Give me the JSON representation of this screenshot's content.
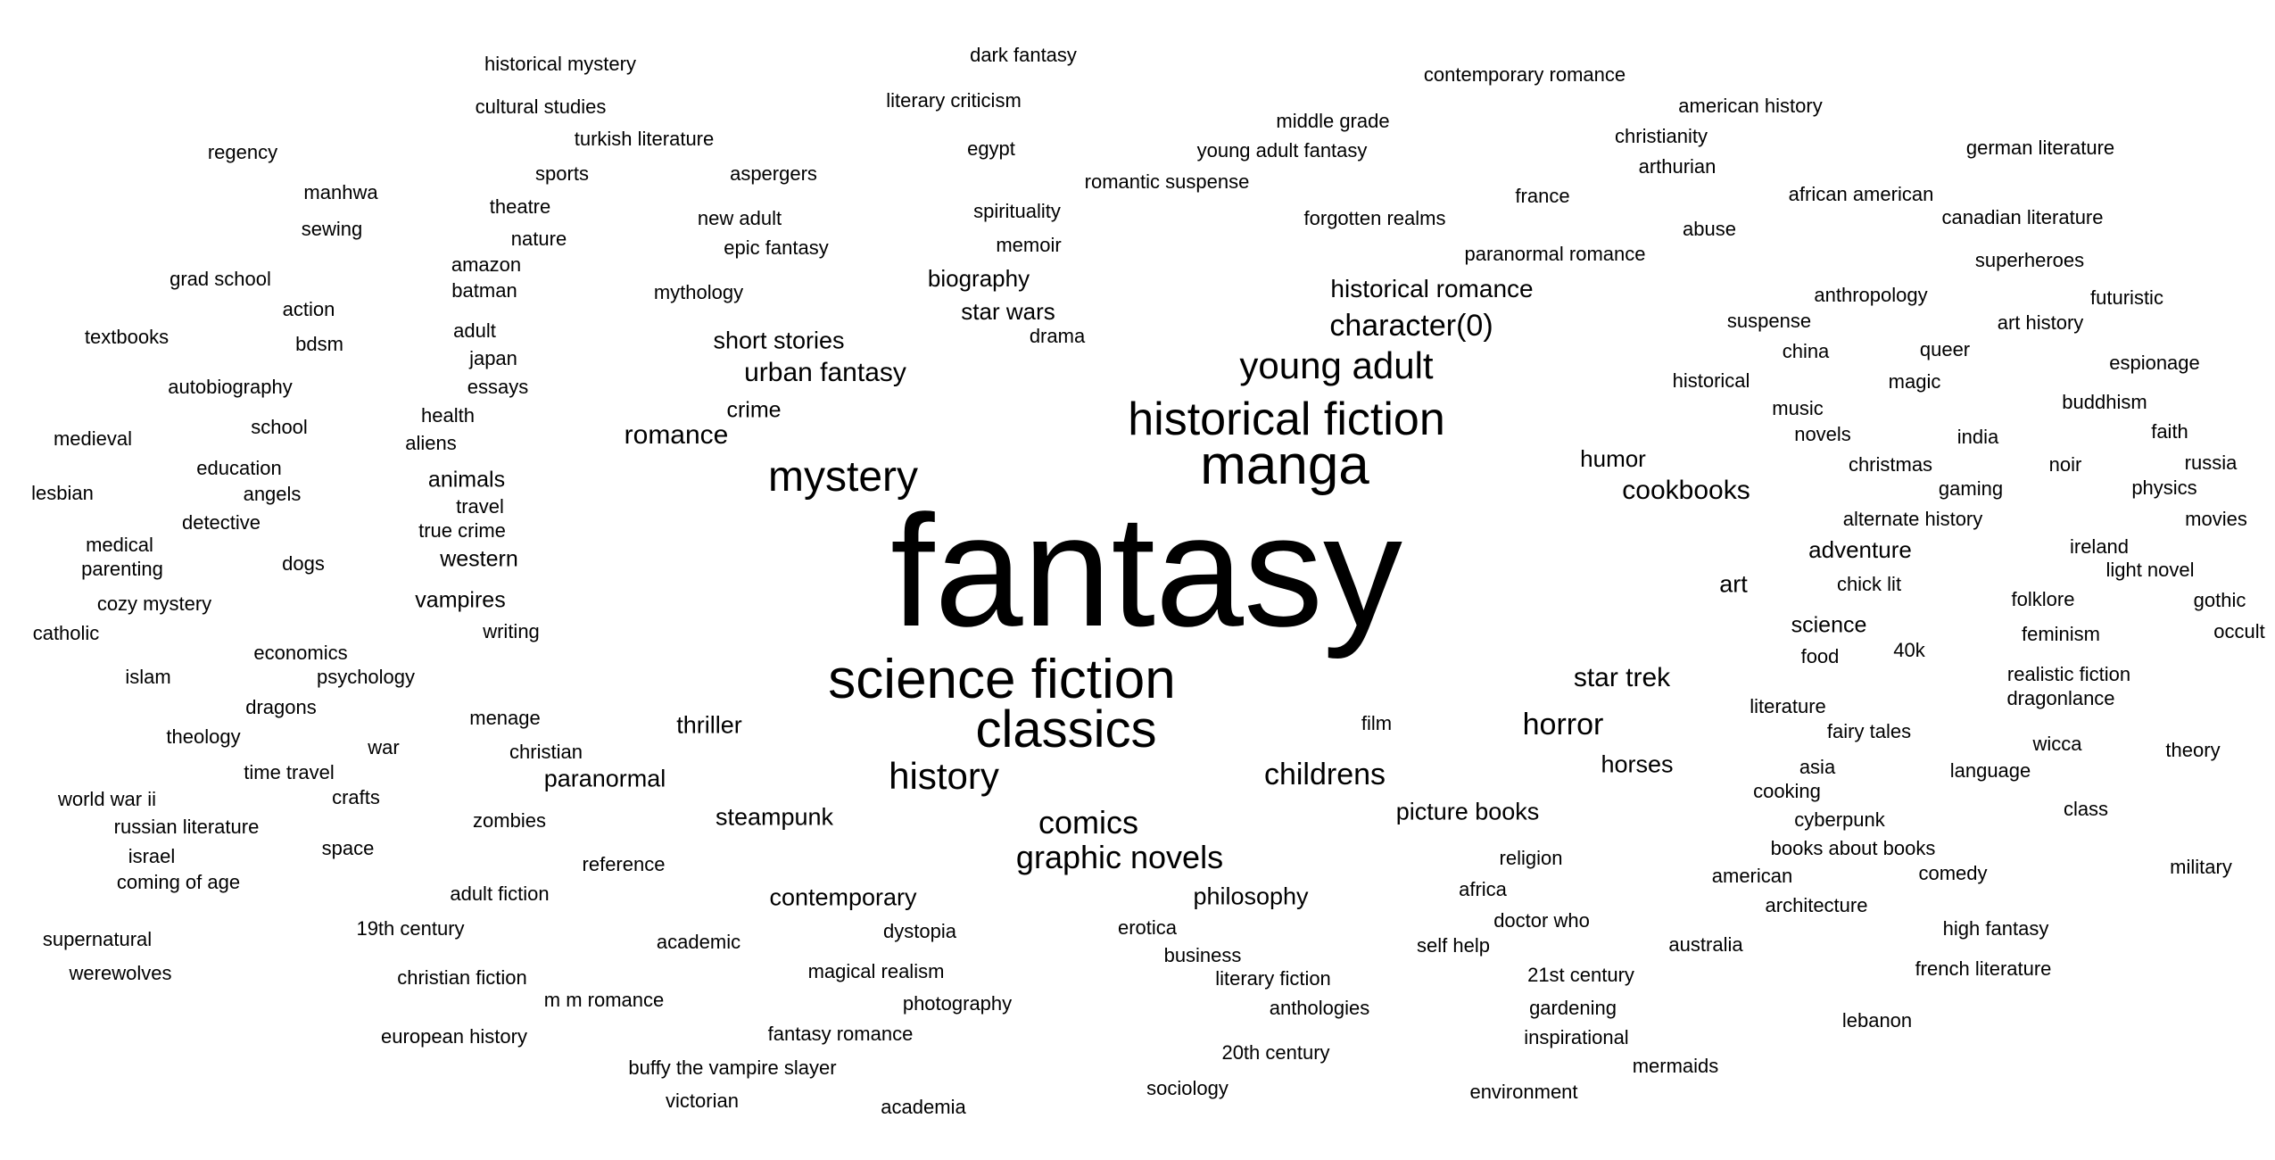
{
  "words": [
    {
      "text": "fantasy",
      "weight": 10
    },
    {
      "text": "science fiction",
      "weight": 5
    },
    {
      "text": "manga",
      "weight": 5
    },
    {
      "text": "historical fiction",
      "weight": 4
    },
    {
      "text": "classics",
      "weight": 4
    },
    {
      "text": "mystery",
      "weight": 4
    },
    {
      "text": "young adult",
      "weight": 3
    },
    {
      "text": "history",
      "weight": 3
    },
    {
      "text": "comics",
      "weight": 2
    },
    {
      "text": "graphic novels",
      "weight": 2
    },
    {
      "text": "character(0)",
      "weight": 2
    },
    {
      "text": "childrens",
      "weight": 2
    },
    {
      "text": "horror",
      "weight": 2
    },
    {
      "text": "historical romance",
      "weight": 2
    },
    {
      "text": "urban fantasy",
      "weight": 2
    },
    {
      "text": "cookbooks",
      "weight": 2
    },
    {
      "text": "star trek",
      "weight": 2
    },
    {
      "text": "romance",
      "weight": 2
    },
    {
      "text": "philosophy",
      "weight": 1
    },
    {
      "text": "short stories",
      "weight": 1
    },
    {
      "text": "contemporary",
      "weight": 1
    },
    {
      "text": "picture books",
      "weight": 1
    },
    {
      "text": "steampunk",
      "weight": 1
    },
    {
      "text": "thriller",
      "weight": 1
    },
    {
      "text": "paranormal",
      "weight": 1
    },
    {
      "text": "horses",
      "weight": 1
    },
    {
      "text": "adventure",
      "weight": 1
    },
    {
      "text": "biography",
      "weight": 1
    },
    {
      "text": "star wars",
      "weight": 1
    },
    {
      "text": "humor",
      "weight": 1
    },
    {
      "text": "science",
      "weight": 1
    },
    {
      "text": "art",
      "weight": 1
    },
    {
      "text": "animals",
      "weight": 1
    },
    {
      "text": "vampires",
      "weight": 1
    },
    {
      "text": "western",
      "weight": 1
    },
    {
      "text": "crime",
      "weight": 1
    },
    {
      "text": "dark fantasy",
      "weight": 0
    },
    {
      "text": "literary criticism",
      "weight": 0
    },
    {
      "text": "egypt",
      "weight": 0
    },
    {
      "text": "romantic suspense",
      "weight": 0
    },
    {
      "text": "spirituality",
      "weight": 0
    },
    {
      "text": "memoir",
      "weight": 0
    },
    {
      "text": "drama",
      "weight": 0
    },
    {
      "text": "historical mystery",
      "weight": 0
    },
    {
      "text": "cultural studies",
      "weight": 0
    },
    {
      "text": "turkish literature",
      "weight": 0
    },
    {
      "text": "sports",
      "weight": 0
    },
    {
      "text": "aspergers",
      "weight": 0
    },
    {
      "text": "theatre",
      "weight": 0
    },
    {
      "text": "nature",
      "weight": 0
    },
    {
      "text": "new adult",
      "weight": 0
    },
    {
      "text": "epic fantasy",
      "weight": 0
    },
    {
      "text": "amazon",
      "weight": 0
    },
    {
      "text": "batman",
      "weight": 0
    },
    {
      "text": "mythology",
      "weight": 0
    },
    {
      "text": "adult",
      "weight": 0
    },
    {
      "text": "japan",
      "weight": 0
    },
    {
      "text": "essays",
      "weight": 0
    },
    {
      "text": "health",
      "weight": 0
    },
    {
      "text": "aliens",
      "weight": 0
    },
    {
      "text": "travel",
      "weight": 0
    },
    {
      "text": "true crime",
      "weight": 0
    },
    {
      "text": "writing",
      "weight": 0
    },
    {
      "text": "regency",
      "weight": 0
    },
    {
      "text": "manhwa",
      "weight": 0
    },
    {
      "text": "sewing",
      "weight": 0
    },
    {
      "text": "grad school",
      "weight": 0
    },
    {
      "text": "action",
      "weight": 0
    },
    {
      "text": "textbooks",
      "weight": 0
    },
    {
      "text": "bdsm",
      "weight": 0
    },
    {
      "text": "autobiography",
      "weight": 0
    },
    {
      "text": "medieval",
      "weight": 0
    },
    {
      "text": "school",
      "weight": 0
    },
    {
      "text": "education",
      "weight": 0
    },
    {
      "text": "lesbian",
      "weight": 0
    },
    {
      "text": "angels",
      "weight": 0
    },
    {
      "text": "detective",
      "weight": 0
    },
    {
      "text": "medical",
      "weight": 0
    },
    {
      "text": "parenting",
      "weight": 0
    },
    {
      "text": "dogs",
      "weight": 0
    },
    {
      "text": "cozy mystery",
      "weight": 0
    },
    {
      "text": "catholic",
      "weight": 0
    },
    {
      "text": "economics",
      "weight": 0
    },
    {
      "text": "islam",
      "weight": 0
    },
    {
      "text": "psychology",
      "weight": 0
    },
    {
      "text": "dragons",
      "weight": 0
    },
    {
      "text": "theology",
      "weight": 0
    },
    {
      "text": "war",
      "weight": 0
    },
    {
      "text": "menage",
      "weight": 0
    },
    {
      "text": "christian",
      "weight": 0
    },
    {
      "text": "time travel",
      "weight": 0
    },
    {
      "text": "world war ii",
      "weight": 0
    },
    {
      "text": "crafts",
      "weight": 0
    },
    {
      "text": "russian literature",
      "weight": 0
    },
    {
      "text": "zombies",
      "weight": 0
    },
    {
      "text": "israel",
      "weight": 0
    },
    {
      "text": "space",
      "weight": 0
    },
    {
      "text": "coming of age",
      "weight": 0
    },
    {
      "text": "reference",
      "weight": 0
    },
    {
      "text": "adult fiction",
      "weight": 0
    },
    {
      "text": "supernatural",
      "weight": 0
    },
    {
      "text": "19th century",
      "weight": 0
    },
    {
      "text": "werewolves",
      "weight": 0
    },
    {
      "text": "christian fiction",
      "weight": 0
    },
    {
      "text": "academic",
      "weight": 0
    },
    {
      "text": "dystopia",
      "weight": 0
    },
    {
      "text": "magical realism",
      "weight": 0
    },
    {
      "text": "m m romance",
      "weight": 0
    },
    {
      "text": "photography",
      "weight": 0
    },
    {
      "text": "european history",
      "weight": 0
    },
    {
      "text": "fantasy romance",
      "weight": 0
    },
    {
      "text": "buffy the vampire slayer",
      "weight": 0
    },
    {
      "text": "victorian",
      "weight": 0
    },
    {
      "text": "academia",
      "weight": 0
    },
    {
      "text": "erotica",
      "weight": 0
    },
    {
      "text": "business",
      "weight": 0
    },
    {
      "text": "literary fiction",
      "weight": 0
    },
    {
      "text": "anthologies",
      "weight": 0
    },
    {
      "text": "20th century",
      "weight": 0
    },
    {
      "text": "sociology",
      "weight": 0
    },
    {
      "text": "film",
      "weight": 0
    },
    {
      "text": "religion",
      "weight": 0
    },
    {
      "text": "africa",
      "weight": 0
    },
    {
      "text": "doctor who",
      "weight": 0
    },
    {
      "text": "self help",
      "weight": 0
    },
    {
      "text": "21st century",
      "weight": 0
    },
    {
      "text": "gardening",
      "weight": 0
    },
    {
      "text": "inspirational",
      "weight": 0
    },
    {
      "text": "environment",
      "weight": 0
    },
    {
      "text": "mermaids",
      "weight": 0
    },
    {
      "text": "australia",
      "weight": 0
    },
    {
      "text": "middle grade",
      "weight": 0
    },
    {
      "text": "young adult fantasy",
      "weight": 0
    },
    {
      "text": "forgotten realms",
      "weight": 0
    },
    {
      "text": "paranormal romance",
      "weight": 0
    },
    {
      "text": "contemporary romance",
      "weight": 0
    },
    {
      "text": "american history",
      "weight": 0
    },
    {
      "text": "christianity",
      "weight": 0
    },
    {
      "text": "arthurian",
      "weight": 0
    },
    {
      "text": "france",
      "weight": 0
    },
    {
      "text": "abuse",
      "weight": 0
    },
    {
      "text": "german literature",
      "weight": 0
    },
    {
      "text": "african american",
      "weight": 0
    },
    {
      "text": "canadian literature",
      "weight": 0
    },
    {
      "text": "superheroes",
      "weight": 0
    },
    {
      "text": "anthropology",
      "weight": 0
    },
    {
      "text": "futuristic",
      "weight": 0
    },
    {
      "text": "suspense",
      "weight": 0
    },
    {
      "text": "art history",
      "weight": 0
    },
    {
      "text": "china",
      "weight": 0
    },
    {
      "text": "queer",
      "weight": 0
    },
    {
      "text": "espionage",
      "weight": 0
    },
    {
      "text": "historical",
      "weight": 0
    },
    {
      "text": "magic",
      "weight": 0
    },
    {
      "text": "music",
      "weight": 0
    },
    {
      "text": "buddhism",
      "weight": 0
    },
    {
      "text": "novels",
      "weight": 0
    },
    {
      "text": "india",
      "weight": 0
    },
    {
      "text": "faith",
      "weight": 0
    },
    {
      "text": "christmas",
      "weight": 0
    },
    {
      "text": "noir",
      "weight": 0
    },
    {
      "text": "russia",
      "weight": 0
    },
    {
      "text": "gaming",
      "weight": 0
    },
    {
      "text": "physics",
      "weight": 0
    },
    {
      "text": "alternate history",
      "weight": 0
    },
    {
      "text": "movies",
      "weight": 0
    },
    {
      "text": "ireland",
      "weight": 0
    },
    {
      "text": "light novel",
      "weight": 0
    },
    {
      "text": "chick lit",
      "weight": 0
    },
    {
      "text": "folklore",
      "weight": 0
    },
    {
      "text": "gothic",
      "weight": 0
    },
    {
      "text": "feminism",
      "weight": 0
    },
    {
      "text": "occult",
      "weight": 0
    },
    {
      "text": "food",
      "weight": 0
    },
    {
      "text": "40k",
      "weight": 0
    },
    {
      "text": "realistic fiction",
      "weight": 0
    },
    {
      "text": "dragonlance",
      "weight": 0
    },
    {
      "text": "literature",
      "weight": 0
    },
    {
      "text": "fairy tales",
      "weight": 0
    },
    {
      "text": "wicca",
      "weight": 0
    },
    {
      "text": "theory",
      "weight": 0
    },
    {
      "text": "asia",
      "weight": 0
    },
    {
      "text": "language",
      "weight": 0
    },
    {
      "text": "cooking",
      "weight": 0
    },
    {
      "text": "class",
      "weight": 0
    },
    {
      "text": "cyberpunk",
      "weight": 0
    },
    {
      "text": "books about books",
      "weight": 0
    },
    {
      "text": "american",
      "weight": 0
    },
    {
      "text": "comedy",
      "weight": 0
    },
    {
      "text": "military",
      "weight": 0
    },
    {
      "text": "architecture",
      "weight": 0
    },
    {
      "text": "high fantasy",
      "weight": 0
    },
    {
      "text": "french literature",
      "weight": 0
    },
    {
      "text": "lebanon",
      "weight": 0
    }
  ]
}
